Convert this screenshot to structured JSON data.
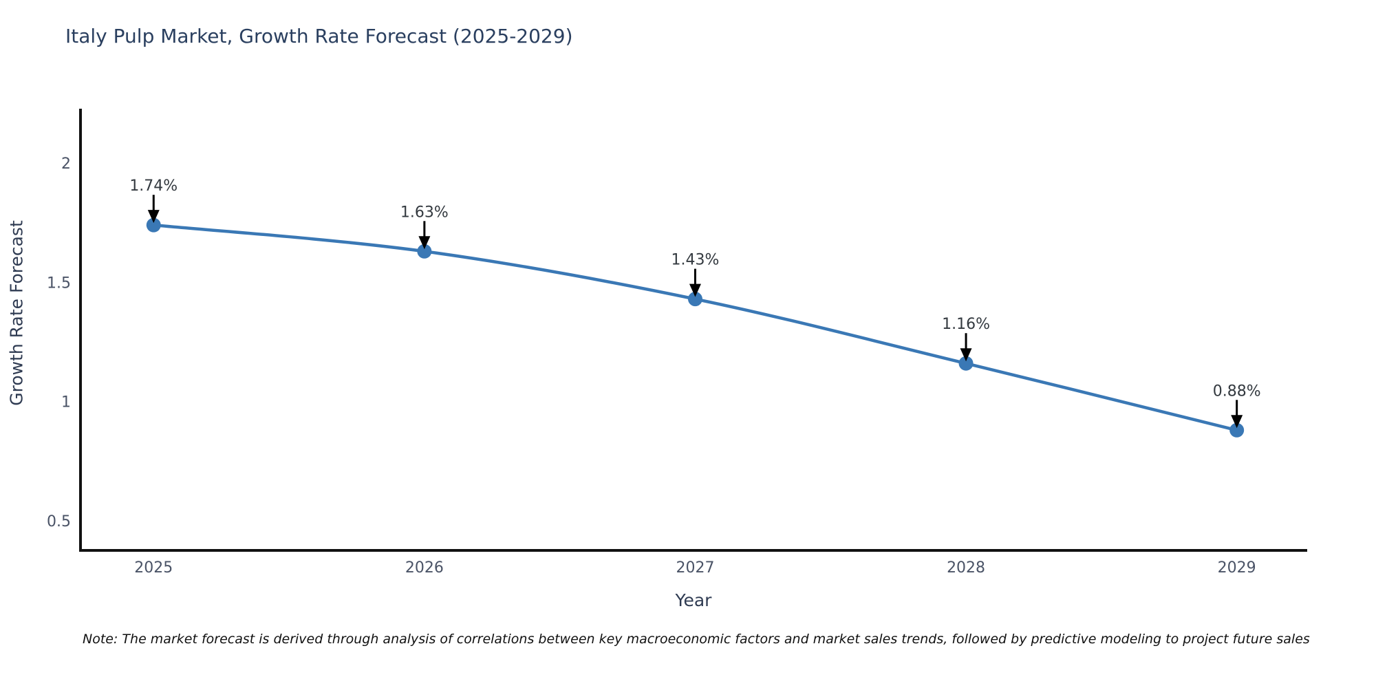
{
  "header": {
    "title": "Italy Pulp Market, Growth Rate Forecast (2025-2029)"
  },
  "chart_data": {
    "type": "line",
    "title": "Italy Pulp Market, Growth Rate Forecast (2025-2029)",
    "xlabel": "Year",
    "ylabel": "Growth Rate Forecast",
    "x": [
      2025,
      2026,
      2027,
      2028,
      2029
    ],
    "x_tick_labels": [
      "2025",
      "2026",
      "2027",
      "2028",
      "2029"
    ],
    "series": [
      {
        "name": "Growth Rate Forecast",
        "values": [
          1.74,
          1.63,
          1.43,
          1.16,
          0.88
        ]
      }
    ],
    "point_labels": [
      "1.74%",
      "1.63%",
      "1.43%",
      "1.16%",
      "0.88%"
    ],
    "y_ticks": [
      2,
      1.5,
      1,
      0.5
    ],
    "y_tick_labels": [
      "2",
      "1.5",
      "1",
      "0.5"
    ],
    "xlim": [
      2024.73,
      2029.26
    ],
    "ylim": [
      0.376,
      2.228
    ],
    "grid": false,
    "legend": "none",
    "curve": "spline",
    "line_color": "#3a78b5",
    "marker_color": "#3a78b5",
    "annotation_color": "#000000",
    "axis_color": "#111111"
  },
  "footer": {
    "note": "Note: The market forecast is derived through analysis of correlations between key macroeconomic factors and market sales trends, followed by predictive modeling to project future sales"
  }
}
